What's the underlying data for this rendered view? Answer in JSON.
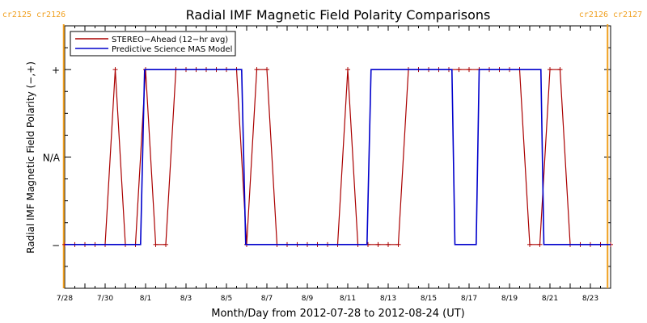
{
  "colors": {
    "stereo": "#aa0000",
    "model": "#0000cc",
    "rotation_marker": "#f0a020",
    "axis": "#000000"
  },
  "chart_data": {
    "type": "line",
    "title": "Radial IMF Magnetic Field Polarity Comparisons",
    "xlabel": "Month/Day from 2012-07-28 to 2012-08-24 (UT)",
    "ylabel": "Radial IMF Magnetic Field Polarity (−,+)",
    "x_unit": "days after 2012-07-28 00:00 UT",
    "xlim": [
      0,
      27
    ],
    "ylim": [
      -1.5,
      1.5
    ],
    "y_ticks": [
      {
        "value": 1,
        "label": "+"
      },
      {
        "value": 0,
        "label": "N/A"
      },
      {
        "value": -1,
        "label": "−"
      }
    ],
    "x_ticks": [
      {
        "day": 0,
        "label": "7/28"
      },
      {
        "day": 2,
        "label": "7/30"
      },
      {
        "day": 4,
        "label": "8/1"
      },
      {
        "day": 6,
        "label": "8/3"
      },
      {
        "day": 8,
        "label": "8/5"
      },
      {
        "day": 10,
        "label": "8/7"
      },
      {
        "day": 12,
        "label": "8/9"
      },
      {
        "day": 14,
        "label": "8/11"
      },
      {
        "day": 16,
        "label": "8/13"
      },
      {
        "day": 18,
        "label": "8/15"
      },
      {
        "day": 20,
        "label": "8/17"
      },
      {
        "day": 22,
        "label": "8/19"
      },
      {
        "day": 24,
        "label": "8/21"
      },
      {
        "day": 26,
        "label": "8/23"
      }
    ],
    "rotation_markers": [
      {
        "day": -0.05,
        "labels": [
          "cr2125",
          "cr2126"
        ],
        "side": "left"
      },
      {
        "day": 26.85,
        "labels": [
          "cr2126",
          "cr2127"
        ],
        "side": "right"
      }
    ],
    "legend": {
      "placement": "top-left"
    },
    "series": [
      {
        "name": "STEREO−Ahead (12−hr avg)",
        "color": "#aa0000",
        "markers": true,
        "x": [
          0,
          0.5,
          1,
          1.5,
          2,
          2.5,
          3,
          3.5,
          4,
          4.5,
          5,
          5.5,
          6,
          6.5,
          7,
          7.5,
          8,
          8.5,
          9,
          9.5,
          10,
          10.5,
          11,
          11.5,
          12,
          12.5,
          13,
          13.5,
          14,
          14.5,
          15,
          15.5,
          16,
          16.5,
          17,
          17.5,
          18,
          18.5,
          19,
          19.5,
          20,
          20.5,
          21,
          21.5,
          22,
          22.5,
          23,
          23.5,
          24,
          24.5,
          25,
          25.5,
          26,
          26.5,
          27
        ],
        "y": [
          -1,
          -1,
          -1,
          -1,
          -1,
          1,
          -1,
          -1,
          1,
          -1,
          -1,
          1,
          1,
          1,
          1,
          1,
          1,
          1,
          -1,
          1,
          1,
          -1,
          -1,
          -1,
          -1,
          -1,
          -1,
          -1,
          1,
          -1,
          -1,
          -1,
          -1,
          -1,
          1,
          1,
          1,
          1,
          1,
          1,
          1,
          1,
          1,
          1,
          1,
          1,
          -1,
          -1,
          1,
          1,
          -1,
          -1,
          -1,
          -1,
          -1
        ]
      },
      {
        "name": "Predictive Science MAS Model",
        "color": "#0000cc",
        "markers": false,
        "x": [
          0,
          3.75,
          3.95,
          8.75,
          8.95,
          14.95,
          15.15,
          19.15,
          19.3,
          20.35,
          20.5,
          23.55,
          23.7,
          27
        ],
        "y": [
          -1,
          -1,
          1,
          1,
          -1,
          -1,
          1,
          1,
          -1,
          -1,
          1,
          1,
          -1,
          -1
        ]
      }
    ]
  }
}
